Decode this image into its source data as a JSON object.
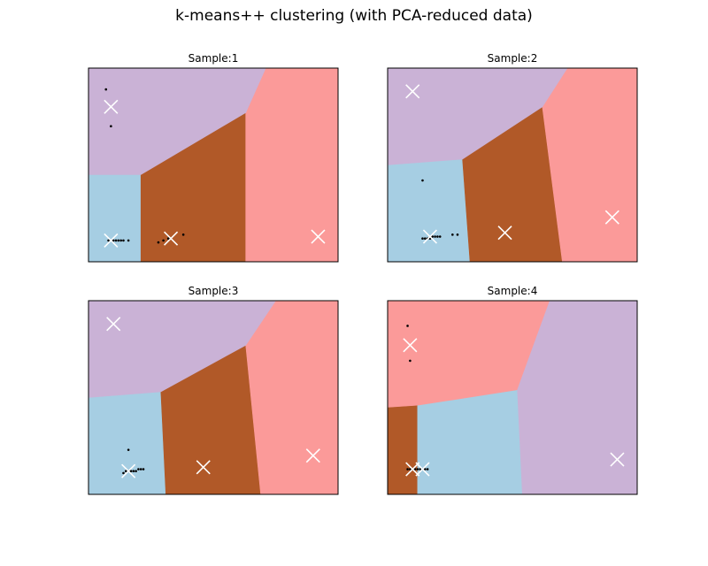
{
  "figure": {
    "title": "k-means++ clustering (with PCA-reduced data)"
  },
  "colors": {
    "light_blue": "#a6cee3",
    "brown": "#b15928",
    "pink": "#fb9a99",
    "lavender": "#cab2d6",
    "centroid": "#ffffff",
    "point": "#000000"
  },
  "chart_data": [
    {
      "type": "scatter",
      "title": "Sample:1",
      "xlim": [
        0,
        100
      ],
      "ylim": [
        0,
        100
      ],
      "grid": false,
      "regions": [
        {
          "color": "light_blue",
          "polygon": [
            [
              0,
              45
            ],
            [
              21,
              45
            ],
            [
              21,
              0
            ],
            [
              0,
              0
            ]
          ]
        },
        {
          "color": "brown",
          "polygon": [
            [
              21,
              45
            ],
            [
              63,
              77
            ],
            [
              63,
              0
            ],
            [
              21,
              0
            ]
          ]
        },
        {
          "color": "pink",
          "polygon": [
            [
              63,
              77
            ],
            [
              71,
              100
            ],
            [
              100,
              100
            ],
            [
              100,
              0
            ],
            [
              63,
              0
            ]
          ]
        },
        {
          "color": "lavender",
          "polygon": [
            [
              0,
              100
            ],
            [
              71,
              100
            ],
            [
              63,
              77
            ],
            [
              21,
              45
            ],
            [
              0,
              45
            ]
          ]
        }
      ],
      "centroids": [
        [
          9,
          80
        ],
        [
          9,
          11
        ],
        [
          33,
          12
        ],
        [
          92,
          13
        ]
      ],
      "points": [
        [
          7,
          89
        ],
        [
          9,
          70
        ],
        [
          8,
          11
        ],
        [
          10,
          11
        ],
        [
          11,
          11
        ],
        [
          12,
          11
        ],
        [
          13,
          11
        ],
        [
          14,
          11
        ],
        [
          16,
          11
        ],
        [
          28,
          10
        ],
        [
          30,
          11
        ],
        [
          32,
          12
        ],
        [
          38,
          14
        ]
      ]
    },
    {
      "type": "scatter",
      "title": "Sample:2",
      "xlim": [
        0,
        100
      ],
      "ylim": [
        0,
        100
      ],
      "grid": false,
      "regions": [
        {
          "color": "light_blue",
          "polygon": [
            [
              0,
              50
            ],
            [
              30,
              53
            ],
            [
              33,
              0
            ],
            [
              0,
              0
            ]
          ]
        },
        {
          "color": "brown",
          "polygon": [
            [
              30,
              53
            ],
            [
              62,
              80
            ],
            [
              70,
              0
            ],
            [
              33,
              0
            ]
          ]
        },
        {
          "color": "pink",
          "polygon": [
            [
              62,
              80
            ],
            [
              72,
              100
            ],
            [
              100,
              100
            ],
            [
              100,
              0
            ],
            [
              70,
              0
            ]
          ]
        },
        {
          "color": "lavender",
          "polygon": [
            [
              0,
              100
            ],
            [
              72,
              100
            ],
            [
              62,
              80
            ],
            [
              30,
              53
            ],
            [
              0,
              50
            ]
          ]
        }
      ],
      "centroids": [
        [
          10,
          88
        ],
        [
          17,
          13
        ],
        [
          47,
          15
        ],
        [
          90,
          23
        ]
      ],
      "points": [
        [
          14,
          42
        ],
        [
          14,
          12
        ],
        [
          15,
          12
        ],
        [
          16,
          12
        ],
        [
          17,
          12
        ],
        [
          18,
          13
        ],
        [
          19,
          13
        ],
        [
          20,
          13
        ],
        [
          21,
          13
        ],
        [
          26,
          14
        ],
        [
          28,
          14
        ]
      ]
    },
    {
      "type": "scatter",
      "title": "Sample:3",
      "xlim": [
        0,
        100
      ],
      "ylim": [
        0,
        100
      ],
      "grid": false,
      "regions": [
        {
          "color": "light_blue",
          "polygon": [
            [
              0,
              50
            ],
            [
              29,
              53
            ],
            [
              31,
              0
            ],
            [
              0,
              0
            ]
          ]
        },
        {
          "color": "brown",
          "polygon": [
            [
              29,
              53
            ],
            [
              63,
              77
            ],
            [
              69,
              0
            ],
            [
              31,
              0
            ]
          ]
        },
        {
          "color": "pink",
          "polygon": [
            [
              63,
              77
            ],
            [
              75,
              100
            ],
            [
              100,
              100
            ],
            [
              100,
              0
            ],
            [
              69,
              0
            ]
          ]
        },
        {
          "color": "lavender",
          "polygon": [
            [
              0,
              100
            ],
            [
              75,
              100
            ],
            [
              63,
              77
            ],
            [
              29,
              53
            ],
            [
              0,
              50
            ]
          ]
        }
      ],
      "centroids": [
        [
          10,
          88
        ],
        [
          16,
          12
        ],
        [
          46,
          14
        ],
        [
          90,
          20
        ]
      ],
      "points": [
        [
          16,
          23
        ],
        [
          14,
          11
        ],
        [
          15,
          12
        ],
        [
          16,
          12
        ],
        [
          17,
          12
        ],
        [
          18,
          12
        ],
        [
          19,
          12
        ],
        [
          20,
          13
        ],
        [
          21,
          13
        ],
        [
          22,
          13
        ]
      ]
    },
    {
      "type": "scatter",
      "title": "Sample:4",
      "xlim": [
        0,
        100
      ],
      "ylim": [
        0,
        100
      ],
      "grid": false,
      "regions": [
        {
          "color": "brown",
          "polygon": [
            [
              0,
              45
            ],
            [
              12,
              46
            ],
            [
              12,
              0
            ],
            [
              0,
              0
            ]
          ]
        },
        {
          "color": "light_blue",
          "polygon": [
            [
              12,
              46
            ],
            [
              52,
              54
            ],
            [
              54,
              0
            ],
            [
              12,
              0
            ]
          ]
        },
        {
          "color": "pink",
          "polygon": [
            [
              0,
              100
            ],
            [
              65,
              100
            ],
            [
              52,
              54
            ],
            [
              12,
              46
            ],
            [
              0,
              45
            ]
          ]
        },
        {
          "color": "lavender",
          "polygon": [
            [
              65,
              100
            ],
            [
              100,
              100
            ],
            [
              100,
              0
            ],
            [
              54,
              0
            ],
            [
              52,
              54
            ]
          ]
        }
      ],
      "centroids": [
        [
          9,
          77
        ],
        [
          10,
          13
        ],
        [
          14,
          13
        ],
        [
          92,
          18
        ]
      ],
      "points": [
        [
          8,
          87
        ],
        [
          9,
          69
        ],
        [
          8,
          13
        ],
        [
          9,
          13
        ],
        [
          10,
          13
        ],
        [
          11,
          13
        ],
        [
          12,
          13
        ],
        [
          13,
          13
        ],
        [
          14,
          13
        ],
        [
          15,
          13
        ],
        [
          16,
          13
        ]
      ]
    }
  ]
}
